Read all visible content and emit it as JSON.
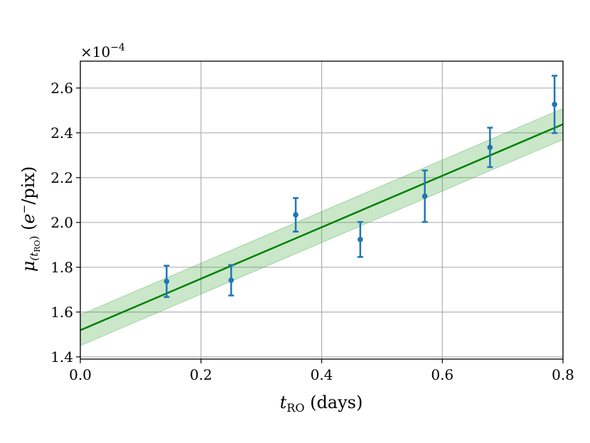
{
  "chart_data": {
    "type": "scatter",
    "title": "",
    "xlabel": {
      "main": "t",
      "sub": "RO",
      "rest": " (days)"
    },
    "ylabel": {
      "main": "μ",
      "sub_open": "(t",
      "sub_sub": "RO",
      "sub_close": ")",
      "rest_open": " (",
      "rest_e": "e",
      "rest_sup": "−",
      "rest_close": "/pix)"
    },
    "xlim": [
      0.0,
      0.8
    ],
    "ylim": [
      1.39,
      2.72
    ],
    "y_offset_label": {
      "base": "×10",
      "exp": "−4"
    },
    "xticks": [
      0.0,
      0.2,
      0.4,
      0.6,
      0.8
    ],
    "xtick_labels": [
      "0.0",
      "0.2",
      "0.4",
      "0.6",
      "0.8"
    ],
    "yticks": [
      1.4,
      1.6,
      1.8,
      2.0,
      2.2,
      2.4,
      2.6
    ],
    "ytick_labels": [
      "1.4",
      "1.6",
      "1.8",
      "2.0",
      "2.2",
      "2.4",
      "2.6"
    ],
    "grid": true,
    "series": [
      {
        "type": "errorbar",
        "color": "#1f77b4",
        "points": [
          {
            "x": 0.143,
            "y": 1.737,
            "err": 0.07
          },
          {
            "x": 0.25,
            "y": 1.742,
            "err": 0.068
          },
          {
            "x": 0.357,
            "y": 2.034,
            "err": 0.075
          },
          {
            "x": 0.464,
            "y": 1.924,
            "err": 0.078
          },
          {
            "x": 0.571,
            "y": 2.117,
            "err": 0.115
          },
          {
            "x": 0.679,
            "y": 2.335,
            "err": 0.088
          },
          {
            "x": 0.786,
            "y": 2.527,
            "err": 0.128
          }
        ]
      },
      {
        "type": "fit_line",
        "color": "#008000",
        "intercept": 1.519,
        "slope": 1.149,
        "band": {
          "color": "#2ca02c",
          "low": [
            1.45,
            2.37
          ],
          "high": [
            1.588,
            2.509
          ]
        }
      }
    ]
  }
}
